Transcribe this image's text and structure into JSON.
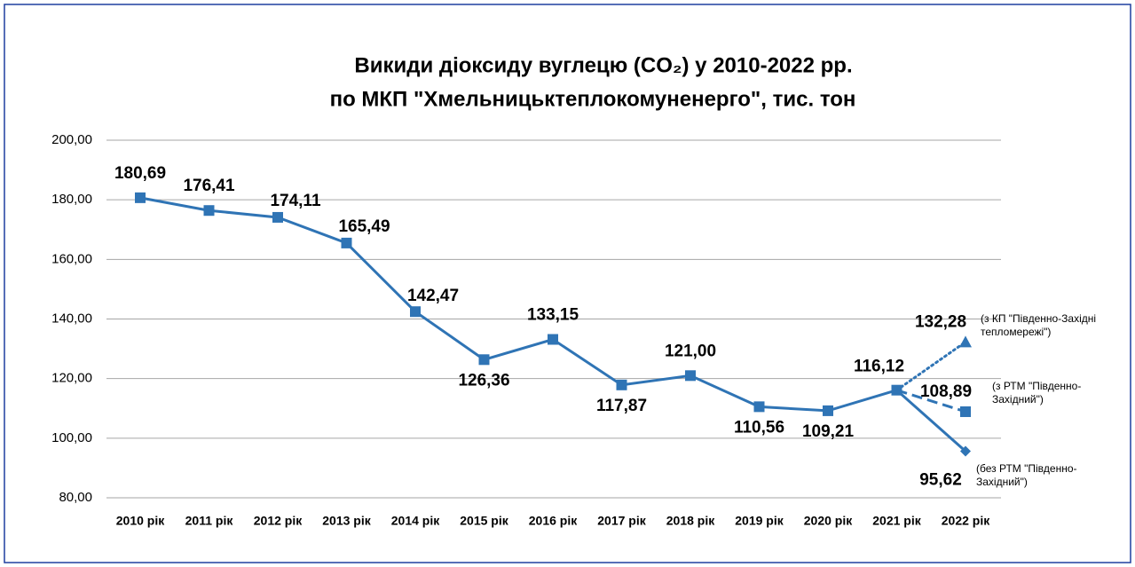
{
  "chart_data": {
    "type": "line",
    "title": "Викиди діоксиду вуглецю (CO₂) у 2010-2022 рр.",
    "subtitle": "по МКП \"Хмельницьктеплокомуненерго\",  тис. тон",
    "categories": [
      "2010 рік",
      "2011 рік",
      "2012 рік",
      "2013 рік",
      "2014 рік",
      "2015 рік",
      "2016 рік",
      "2017 рік",
      "2018 рік",
      "2019 рік",
      "2020 рік",
      "2021 рік",
      "2022 рік"
    ],
    "ylim": [
      80,
      200
    ],
    "yticks": [
      {
        "value": 80,
        "label": "80,00"
      },
      {
        "value": 100,
        "label": "100,00"
      },
      {
        "value": 120,
        "label": "120,00"
      },
      {
        "value": 140,
        "label": "140,00"
      },
      {
        "value": 160,
        "label": "160,00"
      },
      {
        "value": 180,
        "label": "180,00"
      },
      {
        "value": 200,
        "label": "200,00"
      }
    ],
    "grid": true,
    "series": [
      {
        "color": "#2f74b5",
        "dash": "solid",
        "marker": "square",
        "values": [
          180.69,
          176.41,
          174.11,
          165.49,
          142.47,
          126.36,
          133.15,
          117.87,
          121.0,
          110.56,
          109.21,
          116.12,
          null
        ],
        "value_labels": [
          "180,69",
          "176,41",
          "174,11",
          "165,49",
          "142,47",
          "126,36",
          "133,15",
          "117,87",
          "121,00",
          "110,56",
          "109,21",
          "116,12",
          null
        ]
      },
      {
        "name": "(з КП \"Південно-Західні тепломережі\")",
        "color": "#2f74b5",
        "dash": "dotted",
        "marker": "triangle",
        "values": [
          null,
          null,
          null,
          null,
          null,
          null,
          null,
          null,
          null,
          null,
          null,
          116.12,
          132.28
        ],
        "value_labels": [
          null,
          null,
          null,
          null,
          null,
          null,
          null,
          null,
          null,
          null,
          null,
          null,
          "132,28"
        ]
      },
      {
        "name": "(з РТМ \"Південно-Західний\")",
        "color": "#2f74b5",
        "dash": "dashed",
        "marker": "square",
        "values": [
          null,
          null,
          null,
          null,
          null,
          null,
          null,
          null,
          null,
          null,
          null,
          116.12,
          108.89
        ],
        "value_labels": [
          null,
          null,
          null,
          null,
          null,
          null,
          null,
          null,
          null,
          null,
          null,
          null,
          "108,89"
        ]
      },
      {
        "name": "(без РТМ \"Південно-Західний\")",
        "color": "#2f74b5",
        "dash": "solid",
        "marker": "diamond",
        "values": [
          null,
          null,
          null,
          null,
          null,
          null,
          null,
          null,
          null,
          null,
          null,
          116.12,
          95.62
        ],
        "value_labels": [
          null,
          null,
          null,
          null,
          null,
          null,
          null,
          null,
          null,
          null,
          null,
          null,
          "95,62"
        ]
      }
    ]
  }
}
